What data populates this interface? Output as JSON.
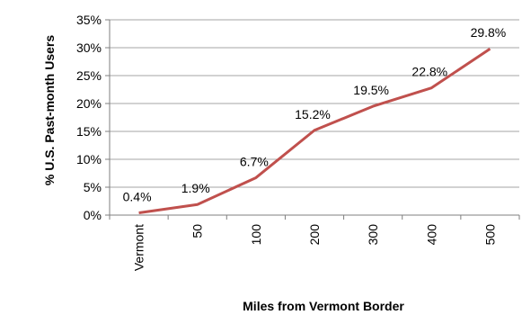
{
  "chart_data": {
    "type": "line",
    "categories": [
      "Vermont",
      "50",
      "100",
      "200",
      "300",
      "400",
      "500"
    ],
    "series": [
      {
        "values": [
          0.4,
          1.9,
          6.7,
          15.2,
          19.5,
          22.8,
          29.8
        ],
        "labels": [
          "0.4%",
          "1.9%",
          "6.7%",
          "15.2%",
          "19.5%",
          "22.8%",
          "29.8%"
        ],
        "color": "#c0504d"
      }
    ],
    "xlabel": "Miles from Vermont Border",
    "ylabel": "% U.S. Past-month Users",
    "ylim": [
      0,
      35
    ],
    "yticks": [
      "0%",
      "5%",
      "10%",
      "15%",
      "20%",
      "25%",
      "30%",
      "35%"
    ],
    "grid": true,
    "gridColor": "#a6a6a6",
    "axisColor": "#7f7f7f"
  }
}
